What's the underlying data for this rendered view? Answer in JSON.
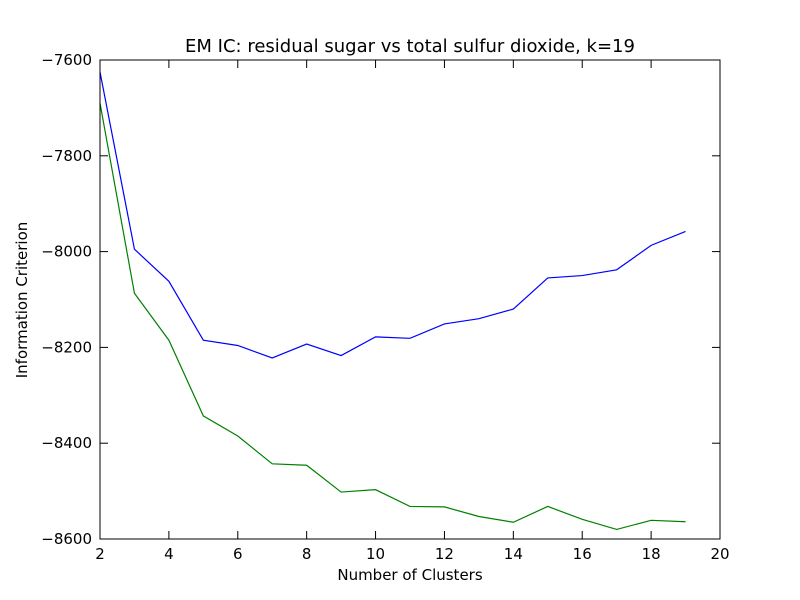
{
  "chart_data": {
    "type": "line",
    "title": "EM IC: residual sugar vs total sulfur dioxide, k=19",
    "xlabel": "Number of Clusters",
    "ylabel": "Information Criterion",
    "xlim": [
      2,
      20
    ],
    "ylim": [
      -8600,
      -7600
    ],
    "xticks": [
      2,
      4,
      6,
      8,
      10,
      12,
      14,
      16,
      18,
      20
    ],
    "yticks": [
      -8600,
      -8400,
      -8200,
      -8000,
      -7800,
      -7600
    ],
    "x": [
      2,
      3,
      4,
      5,
      6,
      7,
      8,
      9,
      10,
      11,
      12,
      13,
      14,
      15,
      16,
      17,
      18,
      19
    ],
    "series": [
      {
        "name": "blue",
        "color": "#0000ff",
        "values": [
          -7625,
          -7995,
          -8062,
          -8185,
          -8196,
          -8222,
          -8193,
          -8217,
          -8178,
          -8181,
          -8151,
          -8140,
          -8120,
          -8055,
          -8050,
          -8038,
          -7987,
          -7958
        ]
      },
      {
        "name": "green",
        "color": "#008000",
        "values": [
          -7690,
          -8087,
          -8185,
          -8343,
          -8385,
          -8443,
          -8446,
          -8502,
          -8497,
          -8532,
          -8533,
          -8553,
          -8565,
          -8532,
          -8559,
          -8580,
          -8561,
          -8564
        ]
      }
    ],
    "grid": false,
    "legend": "none"
  }
}
